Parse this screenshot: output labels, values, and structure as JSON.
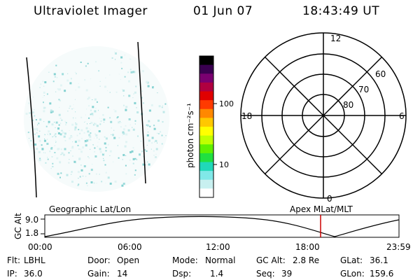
{
  "header": {
    "instrument": "Ultraviolet Imager",
    "date": "01 Jun 07",
    "time": "18:43:49 UT"
  },
  "colorbar": {
    "unit_label": "photon cm⁻²s⁻¹",
    "ticks": [
      "100",
      "10"
    ],
    "colors": [
      "#000000",
      "#3a0050",
      "#7a0070",
      "#b00040",
      "#e00000",
      "#ff3a00",
      "#ff8800",
      "#ffc800",
      "#ffff00",
      "#c0ff00",
      "#60f000",
      "#20e040",
      "#20d8b8",
      "#80e8e8",
      "#c8f0f0",
      "#ffffff"
    ]
  },
  "polar_plot": {
    "mlt_labels": [
      "12",
      "18",
      "6",
      "0"
    ],
    "lat_labels": [
      "60",
      "70",
      "80"
    ]
  },
  "altitude_plot": {
    "left_title": "Geographic Lat/Lon",
    "right_title": "Apex  MLat/MLT",
    "y_axis_label": "GC Alt",
    "y_ticks": [
      "9.0",
      "1.8"
    ],
    "x_ticks": [
      "00:00",
      "06:00",
      "12:00",
      "18:00",
      "23:59"
    ],
    "current_time_marker_color": "#cc0000"
  },
  "info": {
    "row1": [
      {
        "label": "Flt:",
        "value": "LBHL"
      },
      {
        "label": "Door:",
        "value": "Open"
      },
      {
        "label": "Mode:",
        "value": "Normal"
      },
      {
        "label": "GC Alt:",
        "value": "2.8 Re"
      },
      {
        "label": "GLat:",
        "value": "36.1"
      }
    ],
    "row2": [
      {
        "label": "IP:",
        "value": "36.0"
      },
      {
        "label": "Gain:",
        "value": "14"
      },
      {
        "label": "Dsp:",
        "value": "1.4"
      },
      {
        "label": "Seq:",
        "value": "39"
      },
      {
        "label": "GLon:",
        "value": "159.6"
      }
    ]
  }
}
